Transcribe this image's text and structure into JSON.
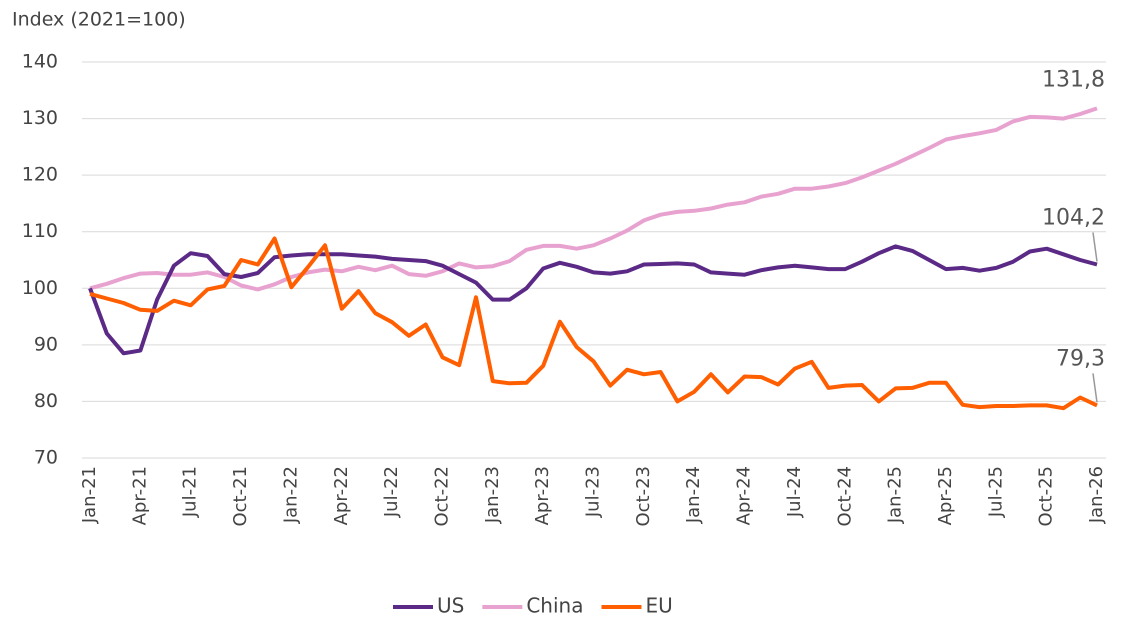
{
  "chart_data": {
    "type": "line",
    "y_label": "Index (2021=100)",
    "categories": [
      "Jan-21",
      null,
      null,
      "Apr-21",
      null,
      null,
      "Jul-21",
      null,
      null,
      "Oct-21",
      null,
      null,
      "Jan-22",
      null,
      null,
      "Apr-22",
      null,
      null,
      "Jul-22",
      null,
      null,
      "Oct-22",
      null,
      null,
      "Jan-23",
      null,
      null,
      "Apr-23",
      null,
      null,
      "Jul-23",
      null,
      null,
      "Oct-23",
      null,
      null,
      "Jan-24",
      null,
      null,
      "Apr-24",
      null,
      null,
      "Jul-24",
      null,
      null,
      "Oct-24",
      null,
      null,
      "Jan-25",
      null,
      null,
      "Apr-25",
      null,
      null,
      "Jul-25",
      null,
      null,
      "Oct-25",
      null,
      null,
      "Jan-26"
    ],
    "series": [
      {
        "name": "US",
        "color": "#5b2a86",
        "values": [
          100,
          92,
          88.5,
          89,
          98,
          104,
          106.2,
          105.7,
          102.5,
          102,
          102.7,
          105.5,
          105.8,
          106,
          106,
          106,
          105.8,
          105.6,
          105.2,
          105,
          104.8,
          104,
          102.5,
          101,
          98,
          98,
          100,
          103.5,
          104.5,
          103.8,
          102.8,
          102.6,
          103,
          104.2,
          104.3,
          104.4,
          104.2,
          102.8,
          102.6,
          102.4,
          103.2,
          103.7,
          104,
          103.7,
          103.4,
          103.4,
          104.7,
          106.2,
          107.4,
          106.6,
          105,
          103.4,
          103.6,
          103.1,
          103.6,
          104.7,
          106.5,
          107,
          106,
          105,
          104.2
        ],
        "value_labels": [
          null,
          null,
          null,
          null,
          null,
          null,
          null,
          null,
          null,
          null,
          null,
          null,
          null,
          null,
          null,
          null,
          null,
          null,
          null,
          null,
          null,
          null,
          null,
          null,
          null,
          null,
          null,
          null,
          null,
          null,
          null,
          null,
          null,
          null,
          null,
          null,
          null,
          null,
          null,
          null,
          null,
          null,
          null,
          null,
          null,
          null,
          null,
          null,
          null,
          null,
          null,
          null,
          null,
          null,
          null,
          null,
          null,
          null,
          null,
          null,
          "104,2"
        ]
      },
      {
        "name": "China",
        "color": "#e8a2d0",
        "values": [
          100,
          100.8,
          101.8,
          102.6,
          102.7,
          102.4,
          102.4,
          102.8,
          102,
          100.5,
          99.8,
          100.7,
          102,
          102.8,
          103.3,
          103,
          103.8,
          103.2,
          104,
          102.5,
          102.2,
          103,
          104.4,
          103.7,
          103.9,
          104.8,
          106.8,
          107.5,
          107.5,
          107,
          107.6,
          108.8,
          110.2,
          112,
          113,
          113.5,
          113.7,
          114.1,
          114.8,
          115.2,
          116.2,
          116.7,
          117.6,
          117.6,
          118,
          118.6,
          119.6,
          120.8,
          122,
          123.4,
          124.8,
          126.3,
          126.9,
          127.4,
          128,
          129.5,
          130.3,
          130.2,
          130,
          130.8,
          131.8
        ],
        "value_labels": [
          null,
          null,
          null,
          null,
          null,
          null,
          null,
          null,
          null,
          null,
          null,
          null,
          null,
          null,
          null,
          null,
          null,
          null,
          null,
          null,
          null,
          null,
          null,
          null,
          null,
          null,
          null,
          null,
          null,
          null,
          null,
          null,
          null,
          null,
          null,
          null,
          null,
          null,
          null,
          null,
          null,
          null,
          null,
          null,
          null,
          null,
          null,
          null,
          null,
          null,
          null,
          null,
          null,
          null,
          null,
          null,
          null,
          null,
          null,
          null,
          "131,8"
        ]
      },
      {
        "name": "EU",
        "color": "#ff5f00",
        "values": [
          99,
          98.2,
          97.4,
          96.2,
          96,
          97.8,
          97,
          99.8,
          100.4,
          105,
          104.2,
          108.8,
          100.2,
          103.8,
          107.6,
          96.4,
          99.5,
          95.6,
          94,
          91.6,
          93.6,
          87.8,
          86.4,
          98.4,
          83.6,
          83.2,
          83.3,
          86.3,
          94.1,
          89.6,
          87.1,
          82.8,
          85.6,
          84.8,
          85.2,
          80,
          81.7,
          84.8,
          81.6,
          84.4,
          84.3,
          83,
          85.8,
          87,
          82.4,
          82.8,
          82.9,
          80,
          82.3,
          82.4,
          83.3,
          83.3,
          79.4,
          79,
          79.2,
          79.2,
          79.3,
          79.3,
          78.8,
          80.7,
          79.3
        ],
        "value_labels": [
          null,
          null,
          null,
          null,
          null,
          null,
          null,
          null,
          null,
          null,
          null,
          null,
          null,
          null,
          null,
          null,
          null,
          null,
          null,
          null,
          null,
          null,
          null,
          null,
          null,
          null,
          null,
          null,
          null,
          null,
          null,
          null,
          null,
          null,
          null,
          null,
          null,
          null,
          null,
          null,
          null,
          null,
          null,
          null,
          null,
          null,
          null,
          null,
          null,
          null,
          null,
          null,
          null,
          null,
          null,
          null,
          null,
          null,
          null,
          null,
          "79,3"
        ]
      }
    ],
    "ylim": [
      70,
      140
    ],
    "yticks": [
      70,
      80,
      90,
      100,
      110,
      120,
      130,
      140
    ],
    "grid": true,
    "legend": "bottom"
  }
}
